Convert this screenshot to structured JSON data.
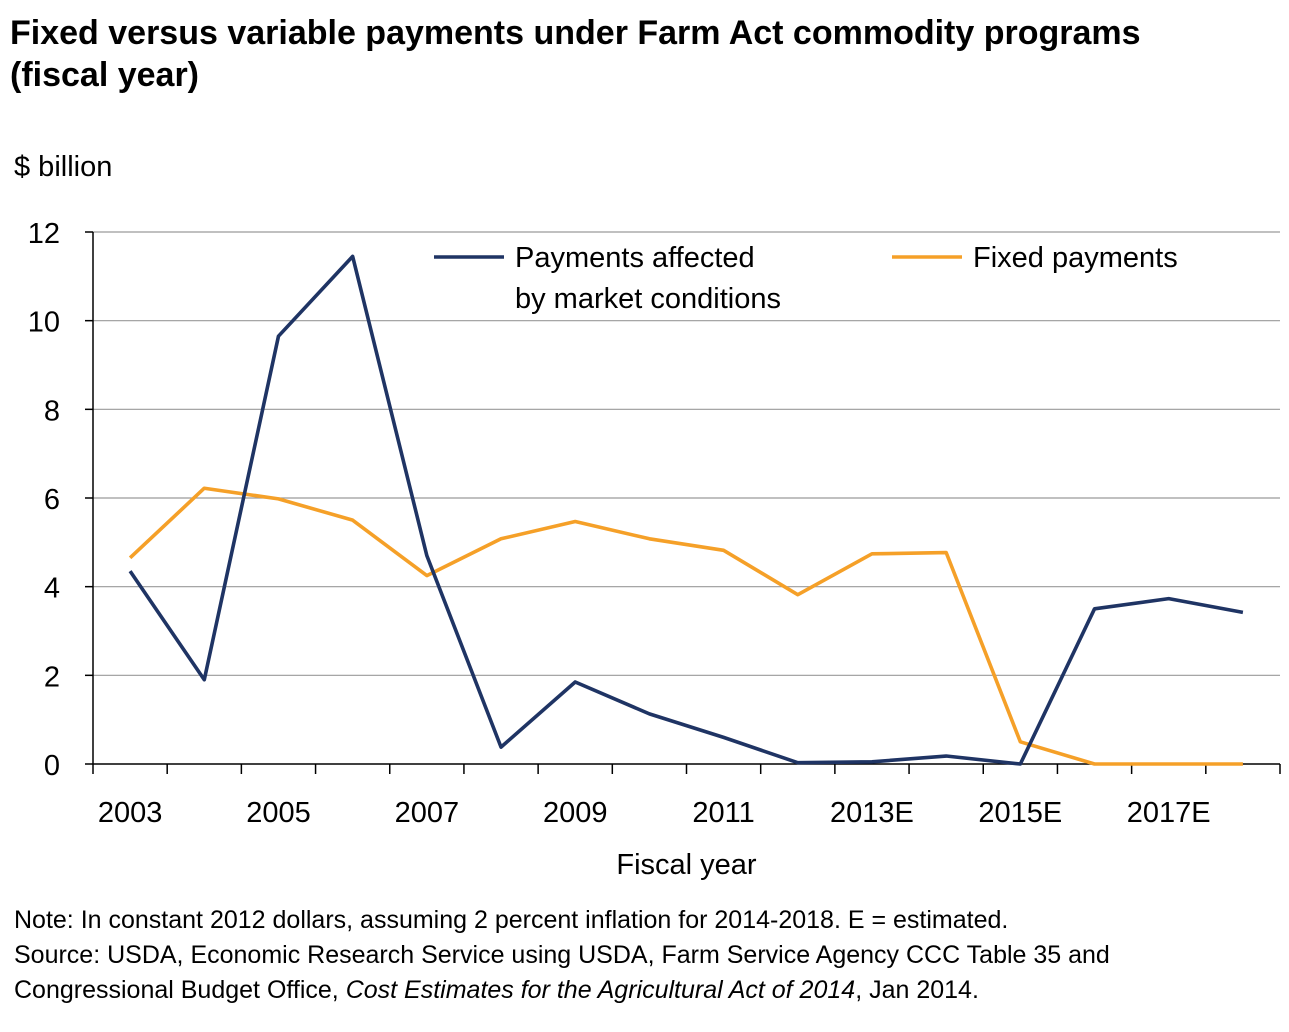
{
  "title": {
    "line1": "Fixed versus variable payments under Farm Act commodity programs",
    "line2": "(fiscal year)"
  },
  "chart_data": {
    "type": "line",
    "ylabel": "$ billion",
    "xlabel": "Fiscal year",
    "ylim": [
      0,
      12
    ],
    "yticks": [
      0,
      2,
      4,
      6,
      8,
      10,
      12
    ],
    "x": [
      2003,
      2004,
      2005,
      2006,
      2007,
      2008,
      2009,
      2010,
      2011,
      2012,
      2013,
      2014,
      2015,
      2016,
      2017,
      2018
    ],
    "xtick_labels": [
      {
        "x": 2003,
        "label": "2003"
      },
      {
        "x": 2005,
        "label": "2005"
      },
      {
        "x": 2007,
        "label": "2007"
      },
      {
        "x": 2009,
        "label": "2009"
      },
      {
        "x": 2011,
        "label": "2011"
      },
      {
        "x": 2013,
        "label": "2013E"
      },
      {
        "x": 2015,
        "label": "2015E"
      },
      {
        "x": 2017,
        "label": "2017E"
      }
    ],
    "grid": true,
    "legend_position": "top",
    "series": [
      {
        "name": "Payments affected by market conditions",
        "legend_lines": [
          "Payments affected",
          "by market conditions"
        ],
        "color": "#1f3464",
        "values": [
          4.35,
          1.9,
          9.65,
          11.45,
          4.7,
          0.38,
          1.85,
          1.13,
          0.6,
          0.03,
          0.05,
          0.18,
          0.0,
          3.5,
          3.73,
          3.42
        ]
      },
      {
        "name": "Fixed payments",
        "legend_lines": [
          "Fixed payments"
        ],
        "color": "#f5a028",
        "values": [
          4.65,
          6.22,
          5.98,
          5.5,
          4.25,
          5.08,
          5.47,
          5.08,
          4.82,
          3.82,
          4.74,
          4.77,
          0.5,
          0.0,
          0.0,
          0.0
        ]
      }
    ]
  },
  "notes": {
    "line1": "Note: In constant 2012 dollars, assuming 2 percent inflation for 2014-2018. E = estimated.",
    "line2": "Source: USDA, Economic Research Service using USDA, Farm Service Agency CCC Table 35 and",
    "line3_pre": "Congressional Budget Office, ",
    "line3_italic": "Cost Estimates for the Agricultural Act of 2014",
    "line3_post": ", Jan 2014."
  }
}
